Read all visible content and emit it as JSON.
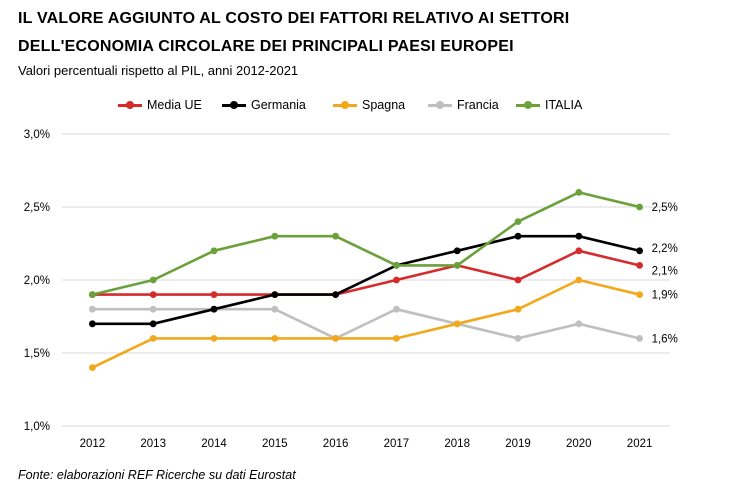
{
  "title_line1": "IL VALORE AGGIUNTO AL COSTO DEI FATTORI RELATIVO AI SETTORI",
  "title_line2": "DELL'ECONOMIA CIRCOLARE DEI PRINCIPALI PAESI EUROPEI",
  "subtitle": "Valori percentuali rispetto al PIL, anni 2012-2021",
  "source": "Fonte: elaborazioni REF Ricerche su dati Eurostat",
  "chart_data": {
    "type": "line",
    "x": [
      "2012",
      "2013",
      "2014",
      "2015",
      "2016",
      "2017",
      "2018",
      "2019",
      "2020",
      "2021"
    ],
    "yticks": [
      "1,0%",
      "1,5%",
      "2,0%",
      "2,5%",
      "3,0%"
    ],
    "ylim": [
      1.0,
      3.0
    ],
    "grid": true,
    "legend_position": "top",
    "series": [
      {
        "name": "Media UE",
        "color": "#d62b2b",
        "values": [
          1.9,
          1.9,
          1.9,
          1.9,
          1.9,
          2.0,
          2.1,
          2.0,
          2.2,
          2.1
        ],
        "end_label": "2,1%"
      },
      {
        "name": "Germania",
        "color": "#000000",
        "values": [
          1.7,
          1.7,
          1.8,
          1.9,
          1.9,
          2.1,
          2.2,
          2.3,
          2.3,
          2.2
        ],
        "end_label": "2,2%"
      },
      {
        "name": "Spagna",
        "color": "#f2a81d",
        "values": [
          1.4,
          1.6,
          1.6,
          1.6,
          1.6,
          1.6,
          1.7,
          1.8,
          2.0,
          1.9
        ],
        "end_label": "1,9%"
      },
      {
        "name": "Francia",
        "color": "#bfbfbf",
        "values": [
          1.8,
          1.8,
          1.8,
          1.8,
          1.6,
          1.8,
          1.7,
          1.6,
          1.7,
          1.6
        ],
        "end_label": "1,6%"
      },
      {
        "name": "ITALIA",
        "color": "#6aa13a",
        "values": [
          1.9,
          2.0,
          2.2,
          2.3,
          2.3,
          2.1,
          2.1,
          2.4,
          2.6,
          2.5
        ],
        "end_label": "2,5%"
      }
    ]
  }
}
